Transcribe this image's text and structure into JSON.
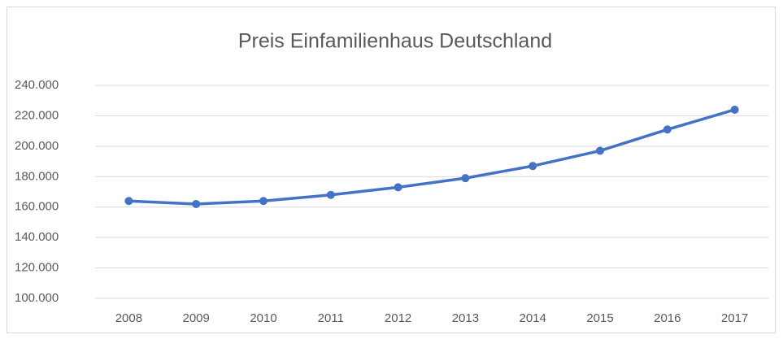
{
  "chart_data": {
    "type": "line",
    "title": "Preis Einfamilienhaus Deutschland",
    "categories": [
      "2008",
      "2009",
      "2010",
      "2011",
      "2012",
      "2013",
      "2014",
      "2015",
      "2016",
      "2017"
    ],
    "values": [
      164000,
      162000,
      164000,
      168000,
      173000,
      179000,
      187000,
      197000,
      211000,
      224000
    ],
    "color": "#4472c4",
    "ylim": [
      100000,
      240000
    ],
    "yticks": [
      {
        "value": 100000,
        "label": "100.000"
      },
      {
        "value": 120000,
        "label": "120.000"
      },
      {
        "value": 140000,
        "label": "140.000"
      },
      {
        "value": 160000,
        "label": "160.000"
      },
      {
        "value": 180000,
        "label": "180.000"
      },
      {
        "value": 200000,
        "label": "200.000"
      },
      {
        "value": 220000,
        "label": "220.000"
      },
      {
        "value": 240000,
        "label": "240.000"
      }
    ],
    "grid": true
  }
}
